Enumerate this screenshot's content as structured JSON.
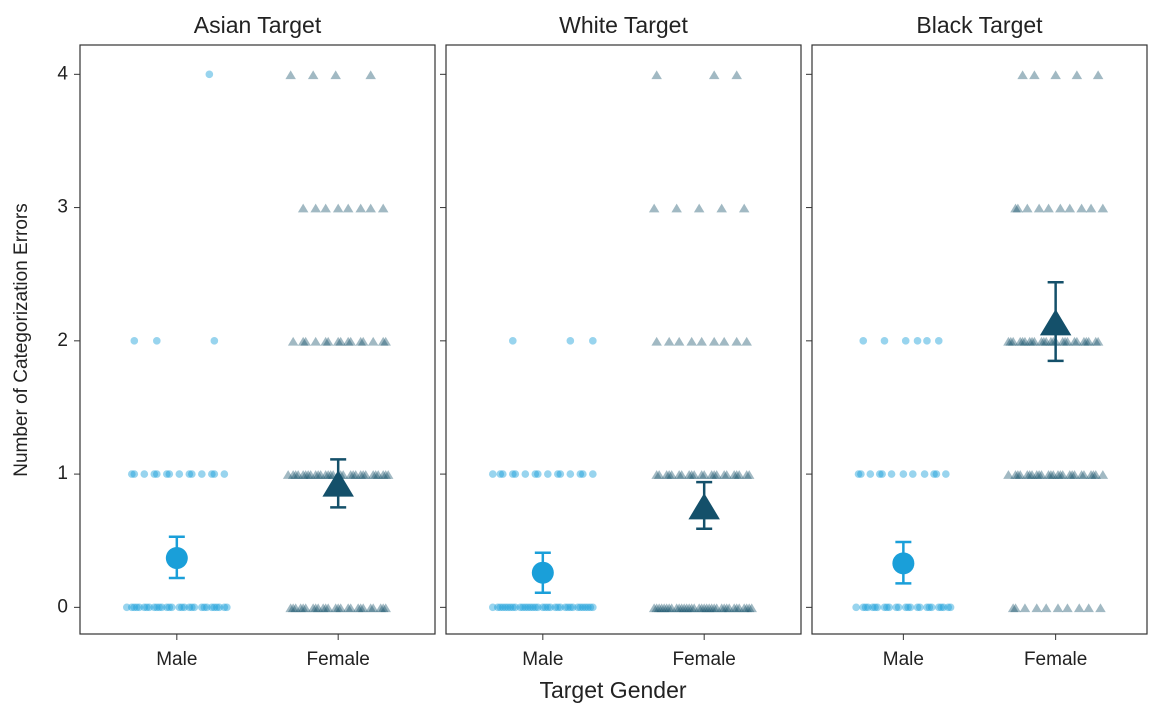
{
  "ylabel": "Number of Categorization Errors",
  "xlabel": "Target Gender",
  "chart_data": [
    {
      "type": "scatter",
      "title": "Asian Target",
      "categories": [
        "Male",
        "Female"
      ],
      "ylim": [
        -0.2,
        4.22
      ],
      "yticks": [
        0,
        1,
        2,
        3,
        4
      ],
      "groups": [
        {
          "color": "#1a9fd9",
          "marker": "circle",
          "points": [
            0,
            0,
            0,
            0,
            0,
            0,
            0,
            0,
            0,
            0,
            0,
            0,
            0,
            0,
            0,
            0,
            0,
            0,
            0,
            0,
            0,
            0,
            0,
            0,
            0,
            0,
            0,
            0,
            0,
            0,
            1,
            1,
            1,
            1,
            1,
            1,
            1,
            1,
            1,
            1,
            1,
            1,
            1,
            1,
            2,
            2,
            2,
            4
          ],
          "mean": 0.37,
          "lower": 0.22,
          "upper": 0.53
        },
        {
          "color": "#14506a",
          "marker": "triangle",
          "points": [
            0,
            0,
            0,
            0,
            0,
            0,
            0,
            0,
            0,
            0,
            0,
            0,
            0,
            0,
            0,
            0,
            0,
            0,
            0,
            0,
            0,
            0,
            0,
            0,
            0,
            1,
            1,
            1,
            1,
            1,
            1,
            1,
            1,
            1,
            1,
            1,
            1,
            1,
            1,
            1,
            1,
            1,
            1,
            1,
            1,
            1,
            1,
            1,
            1,
            1,
            1,
            1,
            1,
            1,
            1,
            2,
            2,
            2,
            2,
            2,
            2,
            2,
            2,
            2,
            2,
            2,
            2,
            2,
            2,
            2,
            3,
            3,
            3,
            3,
            3,
            3,
            3,
            3,
            4,
            4,
            4,
            4
          ],
          "mean": 0.93,
          "lower": 0.75,
          "upper": 1.11
        }
      ]
    },
    {
      "type": "scatter",
      "title": "White Target",
      "categories": [
        "Male",
        "Female"
      ],
      "ylim": [
        -0.2,
        4.22
      ],
      "yticks": [
        0,
        1,
        2,
        3,
        4
      ],
      "groups": [
        {
          "color": "#1a9fd9",
          "marker": "circle",
          "points": [
            0,
            0,
            0,
            0,
            0,
            0,
            0,
            0,
            0,
            0,
            0,
            0,
            0,
            0,
            0,
            0,
            0,
            0,
            0,
            0,
            0,
            0,
            0,
            0,
            0,
            0,
            0,
            0,
            0,
            0,
            0,
            0,
            0,
            0,
            0,
            1,
            1,
            1,
            1,
            1,
            1,
            1,
            1,
            1,
            1,
            1,
            1,
            1,
            1,
            1,
            2,
            2,
            2
          ],
          "mean": 0.26,
          "lower": 0.11,
          "upper": 0.41
        },
        {
          "color": "#14506a",
          "marker": "triangle",
          "points": [
            0,
            0,
            0,
            0,
            0,
            0,
            0,
            0,
            0,
            0,
            0,
            0,
            0,
            0,
            0,
            0,
            0,
            0,
            0,
            0,
            0,
            0,
            0,
            0,
            0,
            0,
            0,
            0,
            0,
            0,
            0,
            0,
            0,
            0,
            0,
            1,
            1,
            1,
            1,
            1,
            1,
            1,
            1,
            1,
            1,
            1,
            1,
            1,
            1,
            1,
            1,
            1,
            1,
            1,
            1,
            1,
            1,
            2,
            2,
            2,
            2,
            2,
            2,
            2,
            2,
            2,
            3,
            3,
            3,
            3,
            3,
            4,
            4,
            4
          ],
          "mean": 0.76,
          "lower": 0.59,
          "upper": 0.94
        }
      ]
    },
    {
      "type": "scatter",
      "title": "Black Target",
      "categories": [
        "Male",
        "Female"
      ],
      "ylim": [
        -0.2,
        4.22
      ],
      "yticks": [
        0,
        1,
        2,
        3,
        4
      ],
      "groups": [
        {
          "color": "#1a9fd9",
          "marker": "circle",
          "points": [
            0,
            0,
            0,
            0,
            0,
            0,
            0,
            0,
            0,
            0,
            0,
            0,
            0,
            0,
            0,
            0,
            0,
            0,
            0,
            0,
            0,
            0,
            0,
            0,
            0,
            1,
            1,
            1,
            1,
            1,
            1,
            1,
            1,
            1,
            1,
            1,
            1,
            2,
            2,
            2,
            2,
            2,
            2
          ],
          "mean": 0.33,
          "lower": 0.18,
          "upper": 0.49
        },
        {
          "color": "#14506a",
          "marker": "triangle",
          "points": [
            0,
            0,
            0,
            0,
            0,
            0,
            0,
            0,
            0,
            0,
            1,
            1,
            1,
            1,
            1,
            1,
            1,
            1,
            1,
            1,
            1,
            1,
            1,
            1,
            1,
            1,
            1,
            1,
            1,
            1,
            1,
            1,
            1,
            1,
            1,
            2,
            2,
            2,
            2,
            2,
            2,
            2,
            2,
            2,
            2,
            2,
            2,
            2,
            2,
            2,
            2,
            2,
            2,
            2,
            2,
            2,
            2,
            2,
            2,
            2,
            3,
            3,
            3,
            3,
            3,
            3,
            3,
            3,
            3,
            3,
            4,
            4,
            4,
            4,
            4
          ],
          "mean": 2.14,
          "lower": 1.85,
          "upper": 2.44
        }
      ]
    }
  ]
}
